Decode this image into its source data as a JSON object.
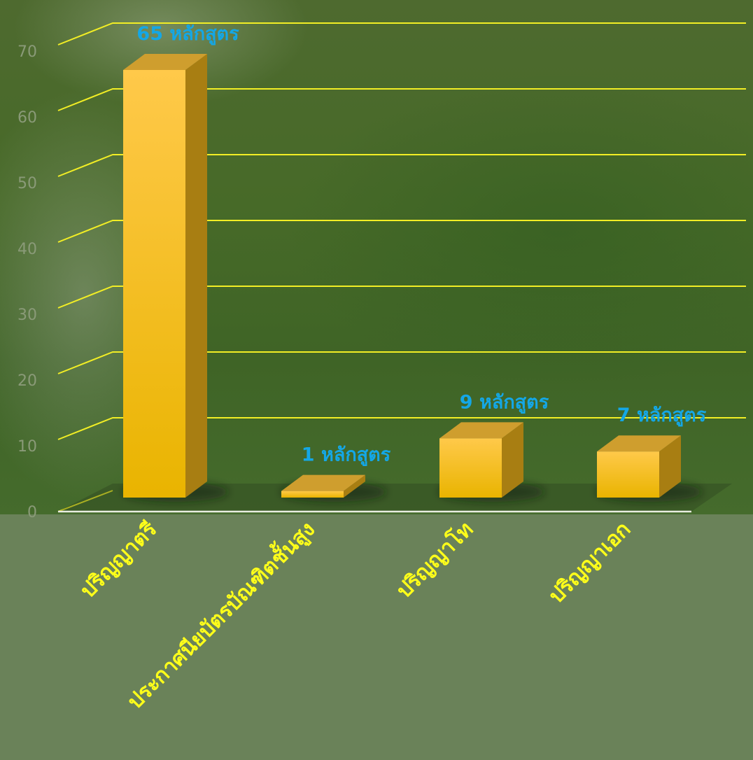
{
  "chart_data": {
    "type": "bar",
    "categories": [
      "ปริญญาตรี",
      "ประกาศนียบัตรบัณฑิตชั้นสูง",
      "ปริญญาโท",
      "ปริญญาเอก"
    ],
    "values": [
      65,
      1,
      9,
      7
    ],
    "data_labels": [
      "65 หลักสูตร",
      "1 หลักสูตร",
      "9 หลักสูตร",
      "7 หลักสูตร"
    ],
    "y_ticks": [
      0,
      10,
      20,
      30,
      40,
      50,
      60,
      70
    ],
    "ylim": [
      0,
      70
    ],
    "title": "",
    "xlabel": "",
    "ylabel": "",
    "grid": true,
    "legend": "none",
    "style": "3d-bar",
    "colors": {
      "bar_front_top": "#ffc94a",
      "bar_front_bottom": "#e9b400",
      "bar_top": "#cf9e2e",
      "bar_side": "#a87e12",
      "gridline": "#f2ee25",
      "category_label": "#ffff1a",
      "data_label": "#14a7e6",
      "tick_label": "#8a9a78"
    }
  }
}
